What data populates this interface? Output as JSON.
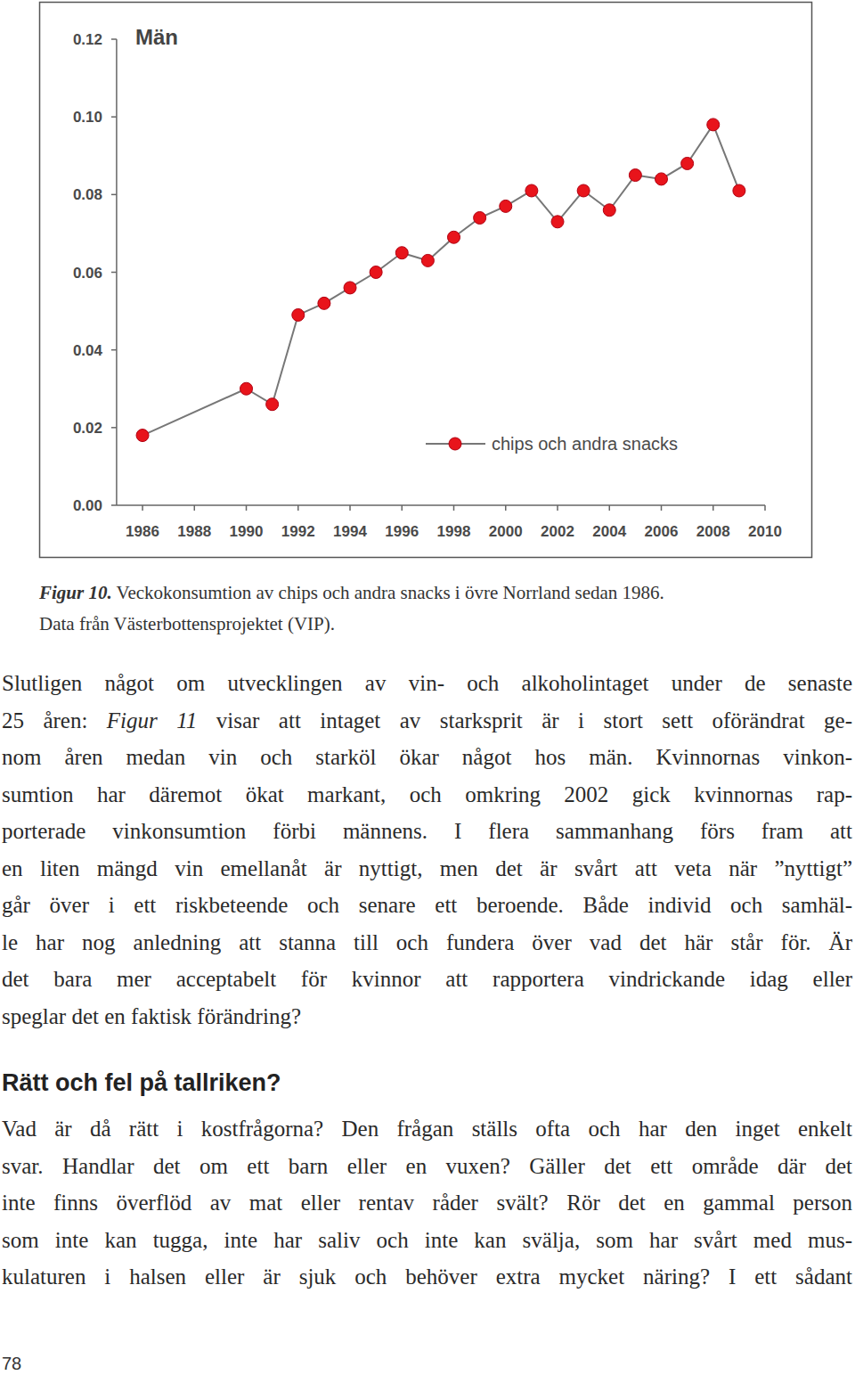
{
  "chart_data": {
    "type": "line",
    "title": "Män",
    "x": [
      1986,
      1990,
      1991,
      1992,
      1993,
      1994,
      1995,
      1996,
      1997,
      1998,
      1999,
      2000,
      2001,
      2002,
      2003,
      2004,
      2005,
      2006,
      2007,
      2008,
      2009
    ],
    "series": [
      {
        "name": "chips och andra snacks",
        "color": "#e8141b",
        "marker": "circle",
        "values": [
          0.018,
          0.03,
          0.026,
          0.049,
          0.052,
          0.056,
          0.06,
          0.065,
          0.063,
          0.069,
          0.074,
          0.077,
          0.081,
          0.073,
          0.081,
          0.076,
          0.085,
          0.084,
          0.088,
          0.098,
          0.081
        ]
      }
    ],
    "xlim": [
      1985,
      2010
    ],
    "xticks": [
      1986,
      1988,
      1990,
      1992,
      1994,
      1996,
      1998,
      2000,
      2002,
      2004,
      2006,
      2008,
      2010
    ],
    "ylim": [
      0,
      0.12
    ],
    "yticks": [
      {
        "value": 0,
        "label": "0.00"
      },
      0.02,
      0.04,
      0.06,
      0.08,
      {
        "value": 0.1,
        "label": "0.10"
      },
      0.12
    ],
    "grid": false,
    "legend": "lower right"
  },
  "caption": {
    "label": "Figur 10.",
    "lines": [
      "Veckokonsumtion av chips och andra snacks i övre Norrland sedan 1986.",
      "Data från Västerbottensprojektet (VIP)."
    ]
  },
  "paragraphs": [
    {
      "lines": [
        "Slutligen något om utvecklingen av vin- och alkoholintaget under de senaste",
        [
          {
            "text": "25 åren: "
          },
          {
            "text": "Figur 11",
            "italic": true
          },
          {
            "text": " visar att intaget av starksprit är i stort sett oförändrat ge-"
          }
        ],
        "nom åren medan vin och starköl ökar något hos män. Kvinnornas vinkon-",
        "sumtion har däremot ökat markant, och omkring 2002 gick kvinnornas rap-",
        "porterade vinkonsumtion förbi männens. I flera sammanhang förs fram att",
        "en liten mängd vin emellanåt är nyttigt, men det är svårt att veta när ”nyttigt”",
        "går över i ett riskbeteende och senare ett beroende. Både individ och samhäl-",
        "le har nog anledning att stanna till och fundera över vad det här står för. Är",
        "det bara mer acceptabelt för kvinnor att rapportera vindrickande idag eller",
        "speglar det en faktisk förändring?"
      ]
    },
    {
      "lines": [
        "Vad är då rätt i kostfrågorna? Den frågan ställs ofta och har den inget enkelt",
        "svar. Handlar det om ett barn eller en vuxen? Gäller det ett område där det",
        "inte finns överflöd av mat eller rentav råder svält? Rör det en gammal person",
        "som inte kan tugga, inte har saliv och inte kan svälja, som har svårt med mus-",
        "kulaturen i halsen eller är sjuk och behöver extra mycket näring? I ett sådant"
      ]
    }
  ],
  "heading": "Rätt och fel på tallriken?",
  "page_number": "78"
}
